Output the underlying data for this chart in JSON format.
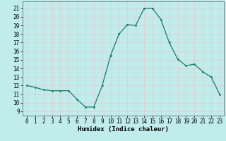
{
  "title": "",
  "xlabel": "Humidex (Indice chaleur)",
  "x": [
    0,
    1,
    2,
    3,
    4,
    5,
    6,
    7,
    8,
    9,
    10,
    11,
    12,
    13,
    14,
    15,
    16,
    17,
    18,
    19,
    20,
    21,
    22,
    23
  ],
  "y": [
    12,
    11.8,
    11.5,
    11.4,
    11.4,
    11.4,
    10.4,
    9.5,
    9.5,
    12.0,
    15.5,
    18.0,
    19.1,
    19.0,
    21.0,
    21.0,
    19.7,
    17.0,
    15.1,
    14.3,
    14.5,
    13.6,
    13.0,
    11.0
  ],
  "line_color": "#1a7a6e",
  "marker_color": "#1a7a6e",
  "bg_color": "#c0ecec",
  "grid_color": "#e8c8c8",
  "xlim": [
    -0.5,
    23.5
  ],
  "ylim": [
    8.5,
    21.8
  ],
  "xticks": [
    0,
    1,
    2,
    3,
    4,
    5,
    6,
    7,
    8,
    9,
    10,
    11,
    12,
    13,
    14,
    15,
    16,
    17,
    18,
    19,
    20,
    21,
    22,
    23
  ],
  "yticks": [
    9,
    10,
    11,
    12,
    13,
    14,
    15,
    16,
    17,
    18,
    19,
    20,
    21
  ],
  "tick_fontsize": 5.5,
  "xlabel_fontsize": 6.5,
  "marker_size": 2.0,
  "linewidth": 0.9
}
